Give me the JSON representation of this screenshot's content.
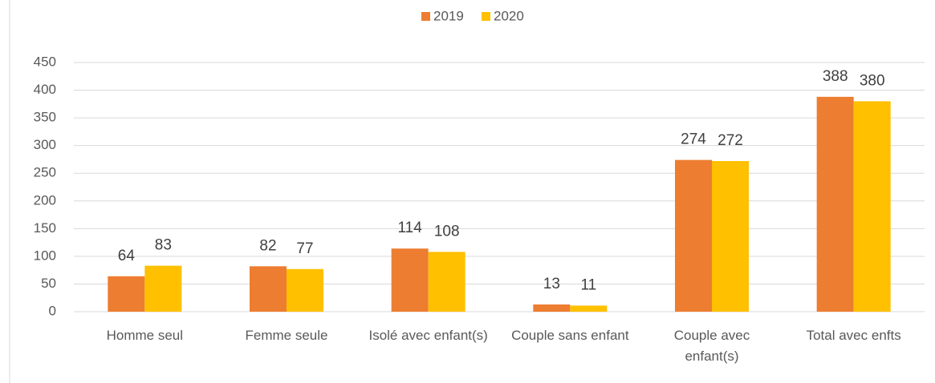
{
  "chart_data": {
    "type": "bar",
    "categories": [
      "Homme seul",
      "Femme seule",
      "Isolé avec enfant(s)",
      "Couple sans enfant",
      "Couple avec enfant(s)",
      "Total avec enfts"
    ],
    "series": [
      {
        "name": "2019",
        "color": "#ed7d31",
        "values": [
          64,
          82,
          114,
          13,
          274,
          388
        ]
      },
      {
        "name": "2020",
        "color": "#ffc000",
        "values": [
          83,
          77,
          108,
          11,
          272,
          380
        ]
      }
    ],
    "ylim": [
      0,
      450
    ],
    "yticks": [
      0,
      50,
      100,
      150,
      200,
      250,
      300,
      350,
      400,
      450
    ],
    "grid": true,
    "legend": "top"
  }
}
